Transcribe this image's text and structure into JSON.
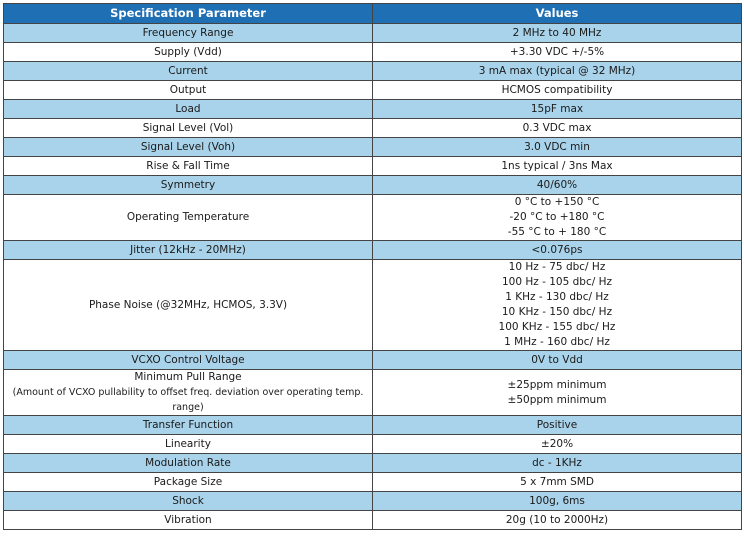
{
  "header": {
    "col1": "Specification Parameter",
    "col2": "Values"
  },
  "rows": [
    {
      "param": [
        "Frequency Range"
      ],
      "value": [
        "2 MHz to 40 MHz"
      ],
      "shade": true
    },
    {
      "param": [
        "Supply (Vdd)"
      ],
      "value": [
        "+3.30 VDC +/-5%"
      ],
      "shade": false
    },
    {
      "param": [
        "Current"
      ],
      "value": [
        "3 mA max (typical @ 32 MHz)"
      ],
      "shade": true
    },
    {
      "param": [
        "Output"
      ],
      "value": [
        "HCMOS compatibility"
      ],
      "shade": false
    },
    {
      "param": [
        "Load"
      ],
      "value": [
        "15pF max"
      ],
      "shade": true
    },
    {
      "param": [
        "Signal Level (Vol)"
      ],
      "value": [
        "0.3 VDC max"
      ],
      "shade": false
    },
    {
      "param": [
        "Signal Level (Voh)"
      ],
      "value": [
        "3.0 VDC min"
      ],
      "shade": true
    },
    {
      "param": [
        "Rise & Fall Time"
      ],
      "value": [
        "1ns typical / 3ns Max"
      ],
      "shade": false
    },
    {
      "param": [
        "Symmetry"
      ],
      "value": [
        "40/60%"
      ],
      "shade": true
    },
    {
      "param": [
        "Operating Temperature"
      ],
      "value": [
        "0 °C to +150 °C",
        "-20 °C to +180 °C",
        "-55 °C to + 180 °C"
      ],
      "shade": false
    },
    {
      "param": [
        "Jitter (12kHz - 20MHz)"
      ],
      "value": [
        "<0.076ps"
      ],
      "shade": true
    },
    {
      "param": [
        "Phase Noise (@32MHz, HCMOS, 3.3V)"
      ],
      "value": [
        "10 Hz - 75 dbc/ Hz",
        "100 Hz - 105 dbc/ Hz",
        "1 KHz - 130 dbc/ Hz",
        "10 KHz - 150 dbc/ Hz",
        "100 KHz - 155 dbc/ Hz",
        "1 MHz - 160 dbc/ Hz"
      ],
      "shade": false
    },
    {
      "param": [
        "VCXO Control Voltage"
      ],
      "value": [
        "0V to Vdd"
      ],
      "shade": true
    },
    {
      "param": [
        "Minimum Pull Range",
        "(Amount of VCXO pullability to offset freq. deviation over operating temp. range)"
      ],
      "value": [
        "±25ppm minimum",
        "±50ppm minimum"
      ],
      "shade": false
    },
    {
      "param": [
        "Transfer Function"
      ],
      "value": [
        "Positive"
      ],
      "shade": true
    },
    {
      "param": [
        "Linearity"
      ],
      "value": [
        "±20%"
      ],
      "shade": false
    },
    {
      "param": [
        "Modulation Rate"
      ],
      "value": [
        "dc - 1KHz"
      ],
      "shade": true
    },
    {
      "param": [
        "Package Size"
      ],
      "value": [
        "5 x 7mm SMD"
      ],
      "shade": false
    },
    {
      "param": [
        "Shock"
      ],
      "value": [
        "100g, 6ms"
      ],
      "shade": true
    },
    {
      "param": [
        "Vibration"
      ],
      "value": [
        "20g (10 to 2000Hz)"
      ],
      "shade": false
    }
  ]
}
